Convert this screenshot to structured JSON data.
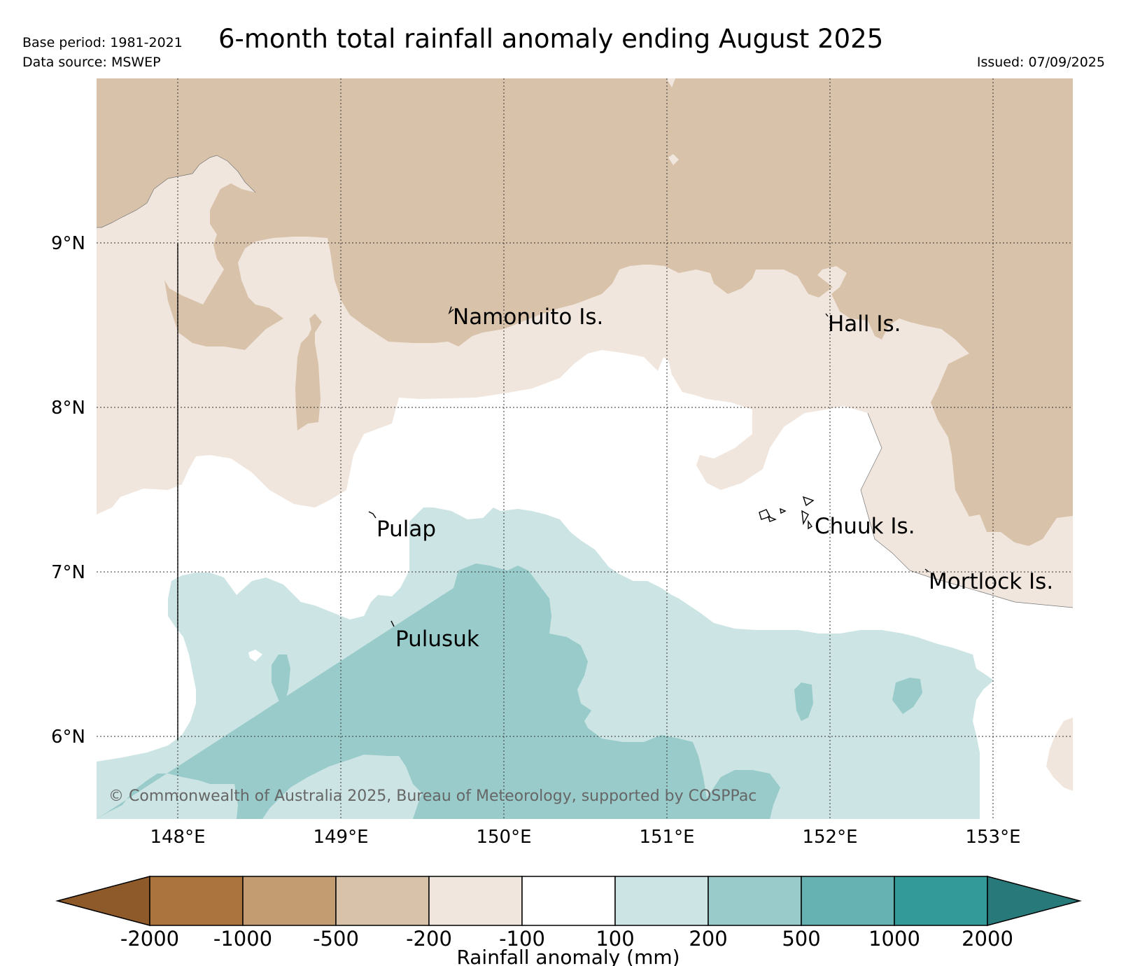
{
  "header": {
    "title": "6-month total rainfall anomaly ending August 2025",
    "base_period": "Base period: 1981-2021",
    "data_source": "Data source: MSWEP",
    "issued": "Issued: 07/09/2025"
  },
  "map": {
    "lat_ticks": [
      "9°N",
      "8°N",
      "7°N",
      "6°N"
    ],
    "lon_ticks": [
      "148°E",
      "149°E",
      "150°E",
      "151°E",
      "152°E",
      "153°E"
    ],
    "places": {
      "namonuito": "Namonuito Is.",
      "hall": "Hall Is.",
      "pulap": "Pulap",
      "chuuk": "Chuuk Is.",
      "mortlock": "Mortlock Is.",
      "pulusuk": "Pulusuk"
    },
    "copyright": "© Commonwealth of Australia 2025, Bureau of Meteorology, supported by COSPPac"
  },
  "colorbar": {
    "label": "Rainfall anomaly (mm)",
    "ticks": [
      "-2000",
      "-1000",
      "-500",
      "-200",
      "-100",
      "100",
      "200",
      "500",
      "1000",
      "2000"
    ],
    "colors": {
      "below_min": "#8f5a29",
      "c1": "#ab733e",
      "c2": "#c39c72",
      "c3": "#d9c2aa",
      "c4": "#f0e6dd",
      "c5": "#ffffff",
      "c6": "#cce5e4",
      "c7": "#99cbcb",
      "c8": "#66b2b2",
      "c9": "#339999",
      "above_max": "#287979"
    }
  }
}
